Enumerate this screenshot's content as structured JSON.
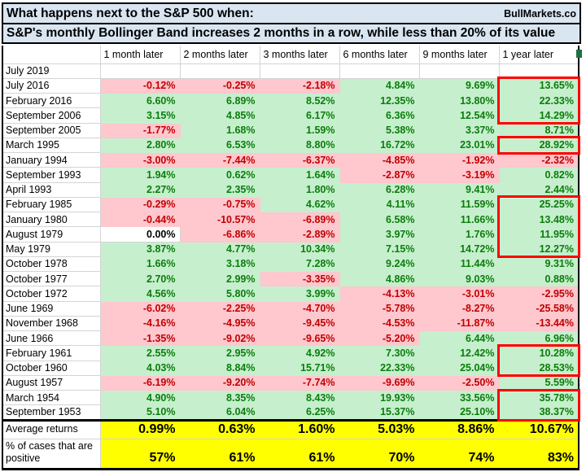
{
  "title": {
    "line1": "What happens next to the S&P 500 when:",
    "line2": "S&P's monthly Bollinger Band increases 2 months in a row, while less than 20% of its value",
    "brand": "BullMarkets.co"
  },
  "colors": {
    "green_fill": "#C6EFCE",
    "pink_fill": "#FFC7CE",
    "green_text": "#0B7D0B",
    "red_text": "#C00000",
    "yellow_fill": "#FFFF00",
    "title_bg": "#D9E5F1",
    "highlight_border": "#FF0000",
    "gridline": "#D4D4D4",
    "handle_green": "#1E7145"
  },
  "chart_data": {
    "type": "table",
    "title": "What happens next to the S&P 500 when: S&P's monthly Bollinger Band increases 2 months in a row, while less than 20% of its value",
    "columns": [
      "1 month later",
      "2 months later",
      "3 months later",
      "6 months later",
      "9 months later",
      "1 year later"
    ],
    "rows": [
      {
        "label": "July 2019",
        "values": [
          null,
          null,
          null,
          null,
          null,
          null
        ]
      },
      {
        "label": "July 2016",
        "values": [
          -0.12,
          -0.25,
          -2.18,
          4.84,
          9.69,
          13.65
        ]
      },
      {
        "label": "February 2016",
        "values": [
          6.6,
          6.89,
          8.52,
          12.35,
          13.8,
          22.33
        ]
      },
      {
        "label": "September 2006",
        "values": [
          3.15,
          4.85,
          6.17,
          6.36,
          12.54,
          14.29
        ]
      },
      {
        "label": "September 2005",
        "values": [
          -1.77,
          1.68,
          1.59,
          5.38,
          3.37,
          8.71
        ]
      },
      {
        "label": "March 1995",
        "values": [
          2.8,
          6.53,
          8.8,
          16.72,
          23.01,
          28.92
        ]
      },
      {
        "label": "January 1994",
        "values": [
          -3.0,
          -7.44,
          -6.37,
          -4.85,
          -1.92,
          -2.32
        ]
      },
      {
        "label": "September 1993",
        "values": [
          1.94,
          0.62,
          1.64,
          -2.87,
          -3.19,
          0.82
        ]
      },
      {
        "label": "April 1993",
        "values": [
          2.27,
          2.35,
          1.8,
          6.28,
          9.41,
          2.44
        ]
      },
      {
        "label": "February 1985",
        "values": [
          -0.29,
          -0.75,
          4.62,
          4.11,
          11.59,
          25.25
        ]
      },
      {
        "label": "January 1980",
        "values": [
          -0.44,
          -10.57,
          -6.89,
          6.58,
          11.66,
          13.48
        ]
      },
      {
        "label": "August 1979",
        "values": [
          0.0,
          -6.86,
          -2.89,
          3.97,
          1.76,
          11.95
        ]
      },
      {
        "label": "May 1979",
        "values": [
          3.87,
          4.77,
          10.34,
          7.15,
          14.72,
          12.27
        ]
      },
      {
        "label": "October 1978",
        "values": [
          1.66,
          3.18,
          7.28,
          9.24,
          11.44,
          9.31
        ]
      },
      {
        "label": "October 1977",
        "values": [
          2.7,
          2.99,
          -3.35,
          4.86,
          9.03,
          0.88
        ]
      },
      {
        "label": "October 1972",
        "values": [
          4.56,
          5.8,
          3.99,
          -4.13,
          -3.01,
          -2.95
        ]
      },
      {
        "label": "June 1969",
        "values": [
          -6.02,
          -2.25,
          -4.7,
          -5.78,
          -8.27,
          -25.58
        ]
      },
      {
        "label": "November 1968",
        "values": [
          -4.16,
          -4.95,
          -9.45,
          -4.53,
          -11.87,
          -13.44
        ]
      },
      {
        "label": "June 1966",
        "values": [
          -1.35,
          -9.02,
          -9.65,
          -5.2,
          6.44,
          6.96
        ]
      },
      {
        "label": "February 1961",
        "values": [
          2.55,
          2.95,
          4.92,
          7.3,
          12.42,
          10.28
        ]
      },
      {
        "label": "October 1960",
        "values": [
          4.03,
          8.84,
          15.71,
          22.33,
          25.04,
          28.53
        ]
      },
      {
        "label": "August 1957",
        "values": [
          -6.19,
          -9.2,
          -7.74,
          -9.69,
          -2.5,
          5.59
        ]
      },
      {
        "label": "March 1954",
        "values": [
          4.9,
          8.35,
          8.43,
          19.93,
          33.56,
          35.78
        ]
      },
      {
        "label": "September 1953",
        "values": [
          5.1,
          6.04,
          6.25,
          15.37,
          25.1,
          38.37
        ]
      }
    ],
    "summary_rows": [
      {
        "label": "Average returns",
        "values": [
          0.99,
          0.63,
          1.6,
          5.03,
          8.86,
          10.67
        ],
        "format": "pct2"
      },
      {
        "label": "% of cases that are positive",
        "values": [
          57,
          61,
          61,
          70,
          74,
          83
        ],
        "format": "pct0"
      }
    ],
    "highlight_groups_year_later": [
      {
        "first_row": "July 2016",
        "last_row": "September 2006"
      },
      {
        "first_row": "March 1995",
        "last_row": "March 1995"
      },
      {
        "first_row": "February 1985",
        "last_row": "May 1979"
      },
      {
        "first_row": "February 1961",
        "last_row": "October 1960"
      },
      {
        "first_row": "March 1954",
        "last_row": "September 1953"
      }
    ],
    "layout": {
      "fill_rule": "positive=green, negative=pink, zero=white, empty=white"
    }
  }
}
